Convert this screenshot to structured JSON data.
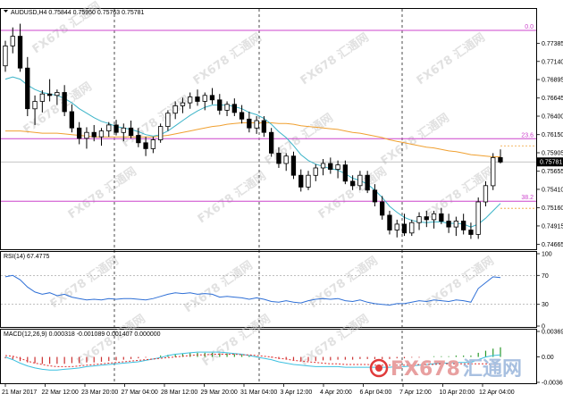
{
  "header": {
    "symbol_line": "AUDUSD,H4  0.75844 0.75950 0.75763 0.75781",
    "rsi_label": "RSI(14) 67.4775",
    "macd_label": "MACD(12,26,9) 0.000318 -0.001089 0.001407 0.000000"
  },
  "watermark": {
    "text": "FX678 汇通网",
    "brand_left": "FX678",
    "brand_right": "汇通网"
  },
  "colors": {
    "up_candle": "#ffffff",
    "down_candle": "#000000",
    "ma_fast": "#3cb4c8",
    "ma_slow": "#f0a030",
    "fib": "#cc44cc",
    "rsi": "#2e6fd6",
    "macd_hist_pos": "#2a9a2a",
    "macd_hist_neg": "#cc3030",
    "macd_signal": "#e03030",
    "macd_line": "#3cc0e0"
  },
  "chart_data": [
    {
      "type": "candlestick",
      "title": "AUDUSD,H4",
      "ohlc_last": {
        "open": 0.75844,
        "high": 0.7595,
        "low": 0.75763,
        "close": 0.75781
      },
      "price_ticks": [
        "0.77385",
        "0.77140",
        "0.76895",
        "0.76645",
        "0.76400",
        "0.76150",
        "0.75905",
        "0.75655",
        "0.75410",
        "0.75160",
        "0.74915",
        "0.74665"
      ],
      "current_price_label": "0.75781",
      "ylim": [
        0.746,
        0.7785
      ],
      "x_tick_labels": [
        "21 Mar 2017",
        "22 Mar 12:00",
        "23 Mar 20:00",
        "27 Mar 04:00",
        "28 Mar 12:00",
        "29 Mar 20:00",
        "31 Mar 04:00",
        "3 Apr 12:00",
        "4 Apr 20:00",
        "6 Apr 04:00",
        "7 Apr 12:00",
        "10 Apr 20:00",
        "12 Apr 04:00"
      ],
      "fib_levels": [
        {
          "label": "0.0",
          "price": 0.7756
        },
        {
          "label": "23.6",
          "price": 0.76095
        },
        {
          "label": "38.2",
          "price": 0.7525
        }
      ],
      "candles": [
        [
          0.7708,
          0.7742,
          0.77,
          0.7735
        ],
        [
          0.7735,
          0.776,
          0.7725,
          0.7748
        ],
        [
          0.7748,
          0.7765,
          0.77,
          0.7705
        ],
        [
          0.7705,
          0.772,
          0.764,
          0.765
        ],
        [
          0.765,
          0.7668,
          0.7628,
          0.766
        ],
        [
          0.766,
          0.7675,
          0.7645,
          0.767
        ],
        [
          0.767,
          0.769,
          0.766,
          0.7668
        ],
        [
          0.7668,
          0.7676,
          0.7655,
          0.7672
        ],
        [
          0.7672,
          0.7682,
          0.764,
          0.7646
        ],
        [
          0.7646,
          0.7656,
          0.7618,
          0.7624
        ],
        [
          0.7624,
          0.7632,
          0.7602,
          0.761
        ],
        [
          0.761,
          0.7625,
          0.7596,
          0.7618
        ],
        [
          0.7618,
          0.7628,
          0.7606,
          0.7612
        ],
        [
          0.7612,
          0.7624,
          0.76,
          0.762
        ],
        [
          0.762,
          0.7632,
          0.7612,
          0.7628
        ],
        [
          0.7628,
          0.7635,
          0.7614,
          0.7618
        ],
        [
          0.7618,
          0.763,
          0.7606,
          0.7624
        ],
        [
          0.7624,
          0.7634,
          0.761,
          0.7614
        ],
        [
          0.7614,
          0.7624,
          0.7598,
          0.7604
        ],
        [
          0.7604,
          0.7612,
          0.7586,
          0.7596
        ],
        [
          0.7596,
          0.7612,
          0.759,
          0.7608
        ],
        [
          0.7608,
          0.763,
          0.7604,
          0.7626
        ],
        [
          0.7626,
          0.7648,
          0.762,
          0.7644
        ],
        [
          0.7644,
          0.766,
          0.7636,
          0.7654
        ],
        [
          0.7654,
          0.7665,
          0.7644,
          0.7658
        ],
        [
          0.7658,
          0.7672,
          0.765,
          0.7666
        ],
        [
          0.7666,
          0.7676,
          0.7654,
          0.766
        ],
        [
          0.766,
          0.7672,
          0.7648,
          0.7668
        ],
        [
          0.7668,
          0.7678,
          0.7656,
          0.7662
        ],
        [
          0.7662,
          0.767,
          0.7642,
          0.7648
        ],
        [
          0.7648,
          0.766,
          0.764,
          0.7656
        ],
        [
          0.7656,
          0.7664,
          0.764,
          0.7645
        ],
        [
          0.7645,
          0.7655,
          0.763,
          0.7636
        ],
        [
          0.7636,
          0.7646,
          0.7618,
          0.7624
        ],
        [
          0.7624,
          0.764,
          0.7616,
          0.7634
        ],
        [
          0.7634,
          0.764,
          0.7612,
          0.7618
        ],
        [
          0.7618,
          0.7624,
          0.7585,
          0.759
        ],
        [
          0.759,
          0.7598,
          0.757,
          0.7576
        ],
        [
          0.7576,
          0.759,
          0.7566,
          0.7586
        ],
        [
          0.7586,
          0.7592,
          0.7555,
          0.756
        ],
        [
          0.756,
          0.7568,
          0.7538,
          0.7544
        ],
        [
          0.7544,
          0.7566,
          0.754,
          0.756
        ],
        [
          0.756,
          0.7575,
          0.7552,
          0.757
        ],
        [
          0.757,
          0.7582,
          0.756,
          0.7576
        ],
        [
          0.7576,
          0.7584,
          0.7562,
          0.7568
        ],
        [
          0.7568,
          0.758,
          0.7556,
          0.7574
        ],
        [
          0.7574,
          0.758,
          0.7548,
          0.7552
        ],
        [
          0.7552,
          0.756,
          0.754,
          0.7546
        ],
        [
          0.7546,
          0.7566,
          0.754,
          0.756
        ],
        [
          0.756,
          0.7566,
          0.7536,
          0.754
        ],
        [
          0.754,
          0.7548,
          0.7518,
          0.7524
        ],
        [
          0.7524,
          0.7532,
          0.75,
          0.7506
        ],
        [
          0.7506,
          0.7512,
          0.748,
          0.7486
        ],
        [
          0.7486,
          0.75,
          0.7476,
          0.7494
        ],
        [
          0.7494,
          0.7508,
          0.7478,
          0.7482
        ],
        [
          0.7482,
          0.75,
          0.7478,
          0.7496
        ],
        [
          0.7496,
          0.751,
          0.7486,
          0.7504
        ],
        [
          0.7504,
          0.7512,
          0.749,
          0.75
        ],
        [
          0.75,
          0.7512,
          0.7488,
          0.7508
        ],
        [
          0.7508,
          0.7516,
          0.7494,
          0.7498
        ],
        [
          0.7498,
          0.7508,
          0.7482,
          0.749
        ],
        [
          0.749,
          0.7504,
          0.7478,
          0.7498
        ],
        [
          0.7498,
          0.7508,
          0.748,
          0.7486
        ],
        [
          0.7486,
          0.7496,
          0.7474,
          0.748
        ],
        [
          0.748,
          0.753,
          0.7474,
          0.7524
        ],
        [
          0.7524,
          0.7552,
          0.7518,
          0.7546
        ],
        [
          0.7546,
          0.759,
          0.754,
          0.7584
        ],
        [
          0.7584,
          0.7595,
          0.7576,
          0.7578
        ]
      ],
      "ma_fast": [
        0.769,
        0.7693,
        0.769,
        0.7682,
        0.7676,
        0.7672,
        0.767,
        0.7668,
        0.7664,
        0.7658,
        0.765,
        0.7644,
        0.7638,
        0.7633,
        0.763,
        0.7626,
        0.7624,
        0.7622,
        0.7619,
        0.7615,
        0.7613,
        0.7615,
        0.762,
        0.7627,
        0.7634,
        0.7641,
        0.7647,
        0.7652,
        0.7655,
        0.7655,
        0.7655,
        0.7653,
        0.765,
        0.7645,
        0.7642,
        0.7637,
        0.7629,
        0.7619,
        0.7611,
        0.76,
        0.7588,
        0.758,
        0.7575,
        0.7572,
        0.7569,
        0.7567,
        0.7562,
        0.7556,
        0.7553,
        0.7548,
        0.754,
        0.753,
        0.7518,
        0.751,
        0.7503,
        0.7499,
        0.7497,
        0.7496,
        0.7497,
        0.7497,
        0.7495,
        0.7495,
        0.7494,
        0.749,
        0.7494,
        0.7502,
        0.7512,
        0.7522
      ],
      "ma_slow": [
        0.762,
        0.762,
        0.762,
        0.7619,
        0.7618,
        0.7617,
        0.7617,
        0.7617,
        0.7616,
        0.7615,
        0.7614,
        0.7613,
        0.7612,
        0.7612,
        0.7612,
        0.7612,
        0.7612,
        0.7612,
        0.7612,
        0.7612,
        0.7612,
        0.7613,
        0.7614,
        0.7616,
        0.7618,
        0.762,
        0.7622,
        0.7624,
        0.7626,
        0.7627,
        0.7629,
        0.763,
        0.7631,
        0.7631,
        0.7631,
        0.7631,
        0.7631,
        0.763,
        0.763,
        0.7629,
        0.7627,
        0.7626,
        0.7625,
        0.7624,
        0.7623,
        0.7622,
        0.762,
        0.7618,
        0.7617,
        0.7615,
        0.7613,
        0.7611,
        0.7608,
        0.7606,
        0.7604,
        0.7602,
        0.76,
        0.7598,
        0.7597,
        0.7595,
        0.7593,
        0.7592,
        0.759,
        0.7588,
        0.7587,
        0.7586,
        0.7585,
        0.7585
      ]
    },
    {
      "type": "line",
      "title": "RSI(14)",
      "value": 67.4775,
      "ylim": [
        0,
        100
      ],
      "y_ticks": [
        "100",
        "70",
        "30",
        "0"
      ],
      "values": [
        68,
        70,
        64,
        54,
        47,
        44,
        46,
        42,
        44,
        40,
        38,
        36,
        37,
        36,
        38,
        37,
        38,
        38,
        37,
        36,
        38,
        41,
        44,
        46,
        45,
        46,
        44,
        45,
        44,
        40,
        41,
        40,
        39,
        37,
        39,
        37,
        34,
        33,
        35,
        33,
        32,
        35,
        37,
        38,
        37,
        38,
        35,
        34,
        36,
        33,
        31,
        30,
        29,
        31,
        31,
        33,
        35,
        34,
        36,
        35,
        34,
        36,
        35,
        33,
        52,
        60,
        68,
        67
      ]
    },
    {
      "type": "bar",
      "title": "MACD(12,26,9)",
      "values_label": "0.000318 -0.001089 0.001407 0.000000",
      "y_ticks": [
        "0.003698",
        "0.00",
        "-0.003685"
      ],
      "ylim": [
        -0.003685,
        0.003698
      ],
      "histogram": [
        -0.0002,
        -0.0004,
        -0.0006,
        -0.0008,
        -0.0009,
        -0.001,
        -0.001,
        -0.001,
        -0.001,
        -0.0009,
        -0.0009,
        -0.0008,
        -0.0008,
        -0.0007,
        -0.0006,
        -0.0005,
        -0.0004,
        -0.0003,
        -0.0002,
        -0.0001,
        0.0,
        0.0002,
        0.0003,
        0.0004,
        0.0005,
        0.0006,
        0.0006,
        0.0006,
        0.0006,
        0.0005,
        0.0005,
        0.0004,
        0.0003,
        0.0002,
        0.0001,
        0.0,
        -0.0001,
        -0.0003,
        -0.0004,
        -0.0005,
        -0.0006,
        -0.0006,
        -0.0006,
        -0.0005,
        -0.0005,
        -0.0004,
        -0.0004,
        -0.0004,
        -0.0003,
        -0.0003,
        -0.0003,
        -0.0003,
        -0.0003,
        -0.0002,
        -0.0002,
        -0.0001,
        -0.0001,
        0.0,
        0.0001,
        0.0001,
        0.0001,
        0.0002,
        0.0002,
        0.0002,
        0.0006,
        0.0009,
        0.0012,
        0.0014
      ],
      "signal": [
        0.0002,
        0.0001,
        -0.0002,
        -0.0006,
        -0.0009,
        -0.0011,
        -0.0013,
        -0.0014,
        -0.0014,
        -0.0014,
        -0.0013,
        -0.0012,
        -0.0011,
        -0.001,
        -0.0009,
        -0.0008,
        -0.0007,
        -0.0006,
        -0.0005,
        -0.0004,
        -0.0003,
        -0.0002,
        -0.0001,
        0.0,
        0.0001,
        0.0002,
        0.0003,
        0.0003,
        0.0004,
        0.0004,
        0.0004,
        0.0004,
        0.0003,
        0.0003,
        0.0002,
        0.0001,
        0.0,
        -0.0002,
        -0.0003,
        -0.0005,
        -0.0006,
        -0.0007,
        -0.0008,
        -0.0009,
        -0.001,
        -0.001,
        -0.0011,
        -0.0011,
        -0.0011,
        -0.0011,
        -0.0012,
        -0.0012,
        -0.0012,
        -0.0012,
        -0.0012,
        -0.0012,
        -0.0011,
        -0.0011,
        -0.0011,
        -0.001,
        -0.001,
        -0.001,
        -0.001,
        -0.001,
        -0.001,
        -0.001,
        -0.0011,
        -0.0011
      ],
      "macd_line": [
        0.0,
        -0.0004,
        -0.0009,
        -0.0013,
        -0.0016,
        -0.0018,
        -0.0019,
        -0.0019,
        -0.0018,
        -0.0017,
        -0.0016,
        -0.0014,
        -0.0013,
        -0.0012,
        -0.0011,
        -0.001,
        -0.0009,
        -0.0008,
        -0.0007,
        -0.0005,
        -0.0003,
        -0.0001,
        0.0002,
        0.0004,
        0.0005,
        0.0006,
        0.0007,
        0.0007,
        0.0007,
        0.0007,
        0.0006,
        0.0005,
        0.0004,
        0.0002,
        0.0,
        -0.0002,
        -0.0004,
        -0.0007,
        -0.0009,
        -0.0011,
        -0.0012,
        -0.0013,
        -0.0014,
        -0.0014,
        -0.0014,
        -0.0014,
        -0.0015,
        -0.0015,
        -0.0015,
        -0.0015,
        -0.0015,
        -0.0015,
        -0.0015,
        -0.0014,
        -0.0014,
        -0.0013,
        -0.0012,
        -0.0011,
        -0.001,
        -0.0009,
        -0.0009,
        -0.0008,
        -0.0008,
        -0.0008,
        -0.0004,
        0.0,
        0.0002,
        0.0003
      ]
    }
  ]
}
